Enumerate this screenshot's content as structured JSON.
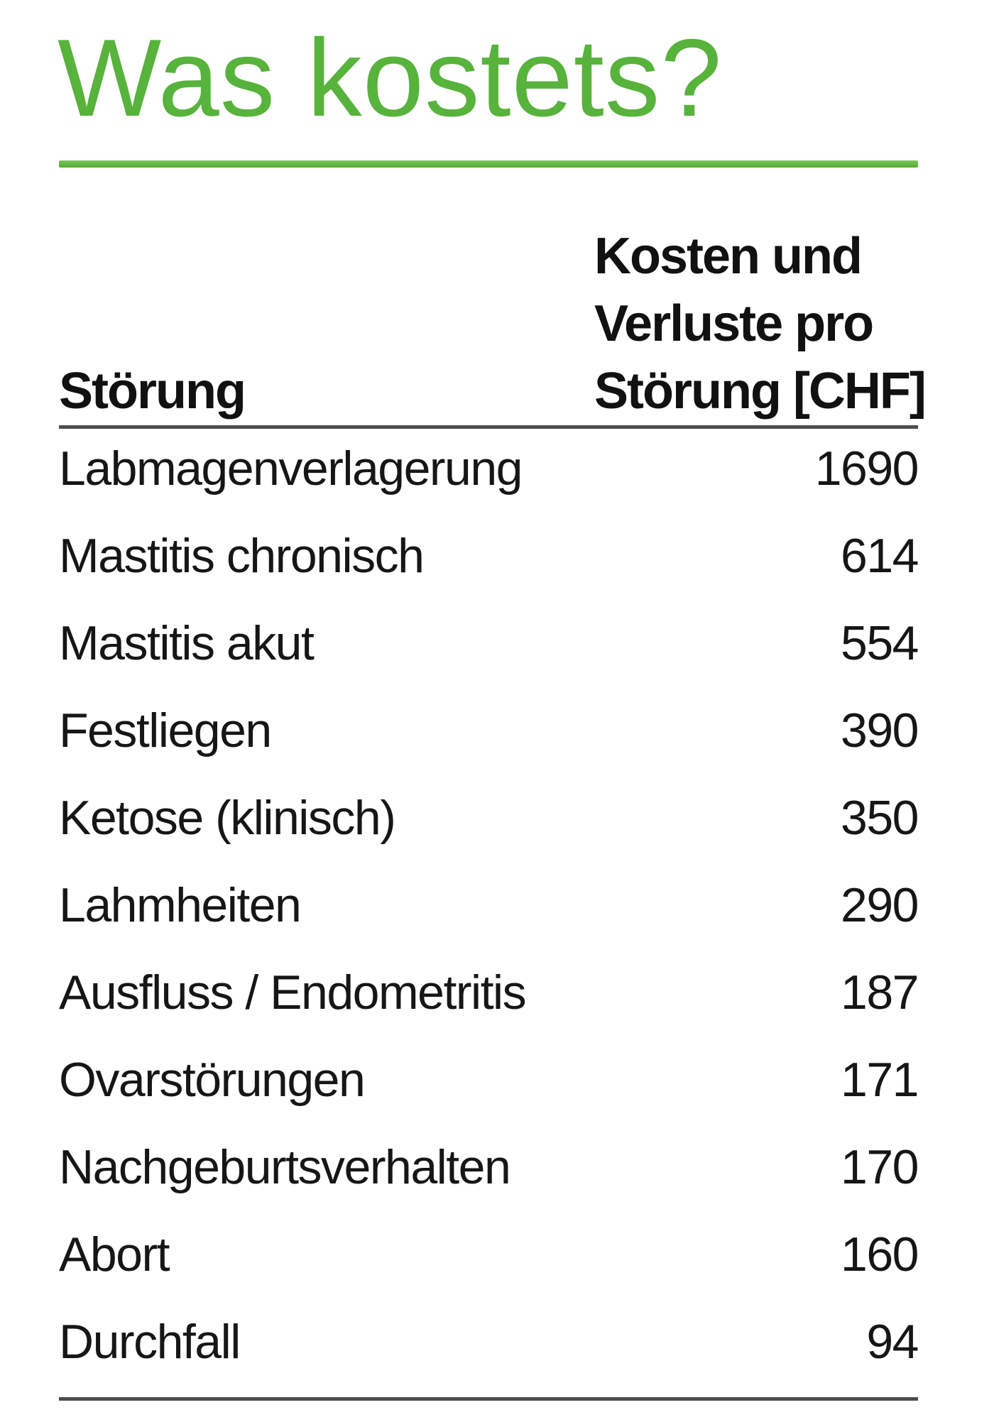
{
  "page": {
    "title": "Was kostets?",
    "accent_color": "#57b33b",
    "rule_color": "#4d4d4d",
    "text_color": "#111111"
  },
  "table": {
    "col1_header": "Störung",
    "col2_header_lines": [
      "Kosten und",
      "Verluste pro",
      "Störung [CHF]"
    ],
    "rows": [
      {
        "label": "Labmagenverlagerung",
        "value": "1690"
      },
      {
        "label": "Mastitis chronisch",
        "value": "614"
      },
      {
        "label": "Mastitis akut",
        "value": "554"
      },
      {
        "label": "Festliegen",
        "value": "390"
      },
      {
        "label": "Ketose (klinisch)",
        "value": "350"
      },
      {
        "label": "Lahmheiten",
        "value": "290"
      },
      {
        "label": "Ausfluss / Endometritis",
        "value": "187"
      },
      {
        "label": "Ovarstörungen",
        "value": "171"
      },
      {
        "label": "Nachgeburtsverhalten",
        "value": "170"
      },
      {
        "label": "Abort",
        "value": "160"
      },
      {
        "label": "Durchfall",
        "value": "94"
      }
    ]
  },
  "chart_data": {
    "type": "table",
    "title": "Was kostets?",
    "columns": [
      "Störung",
      "Kosten und Verluste pro Störung [CHF]"
    ],
    "categories": [
      "Labmagenverlagerung",
      "Mastitis chronisch",
      "Mastitis akut",
      "Festliegen",
      "Ketose (klinisch)",
      "Lahmheiten",
      "Ausfluss / Endometritis",
      "Ovarstörungen",
      "Nachgeburtsverhalten",
      "Abort",
      "Durchfall"
    ],
    "values": [
      1690,
      614,
      554,
      390,
      350,
      290,
      187,
      171,
      170,
      160,
      94
    ]
  }
}
